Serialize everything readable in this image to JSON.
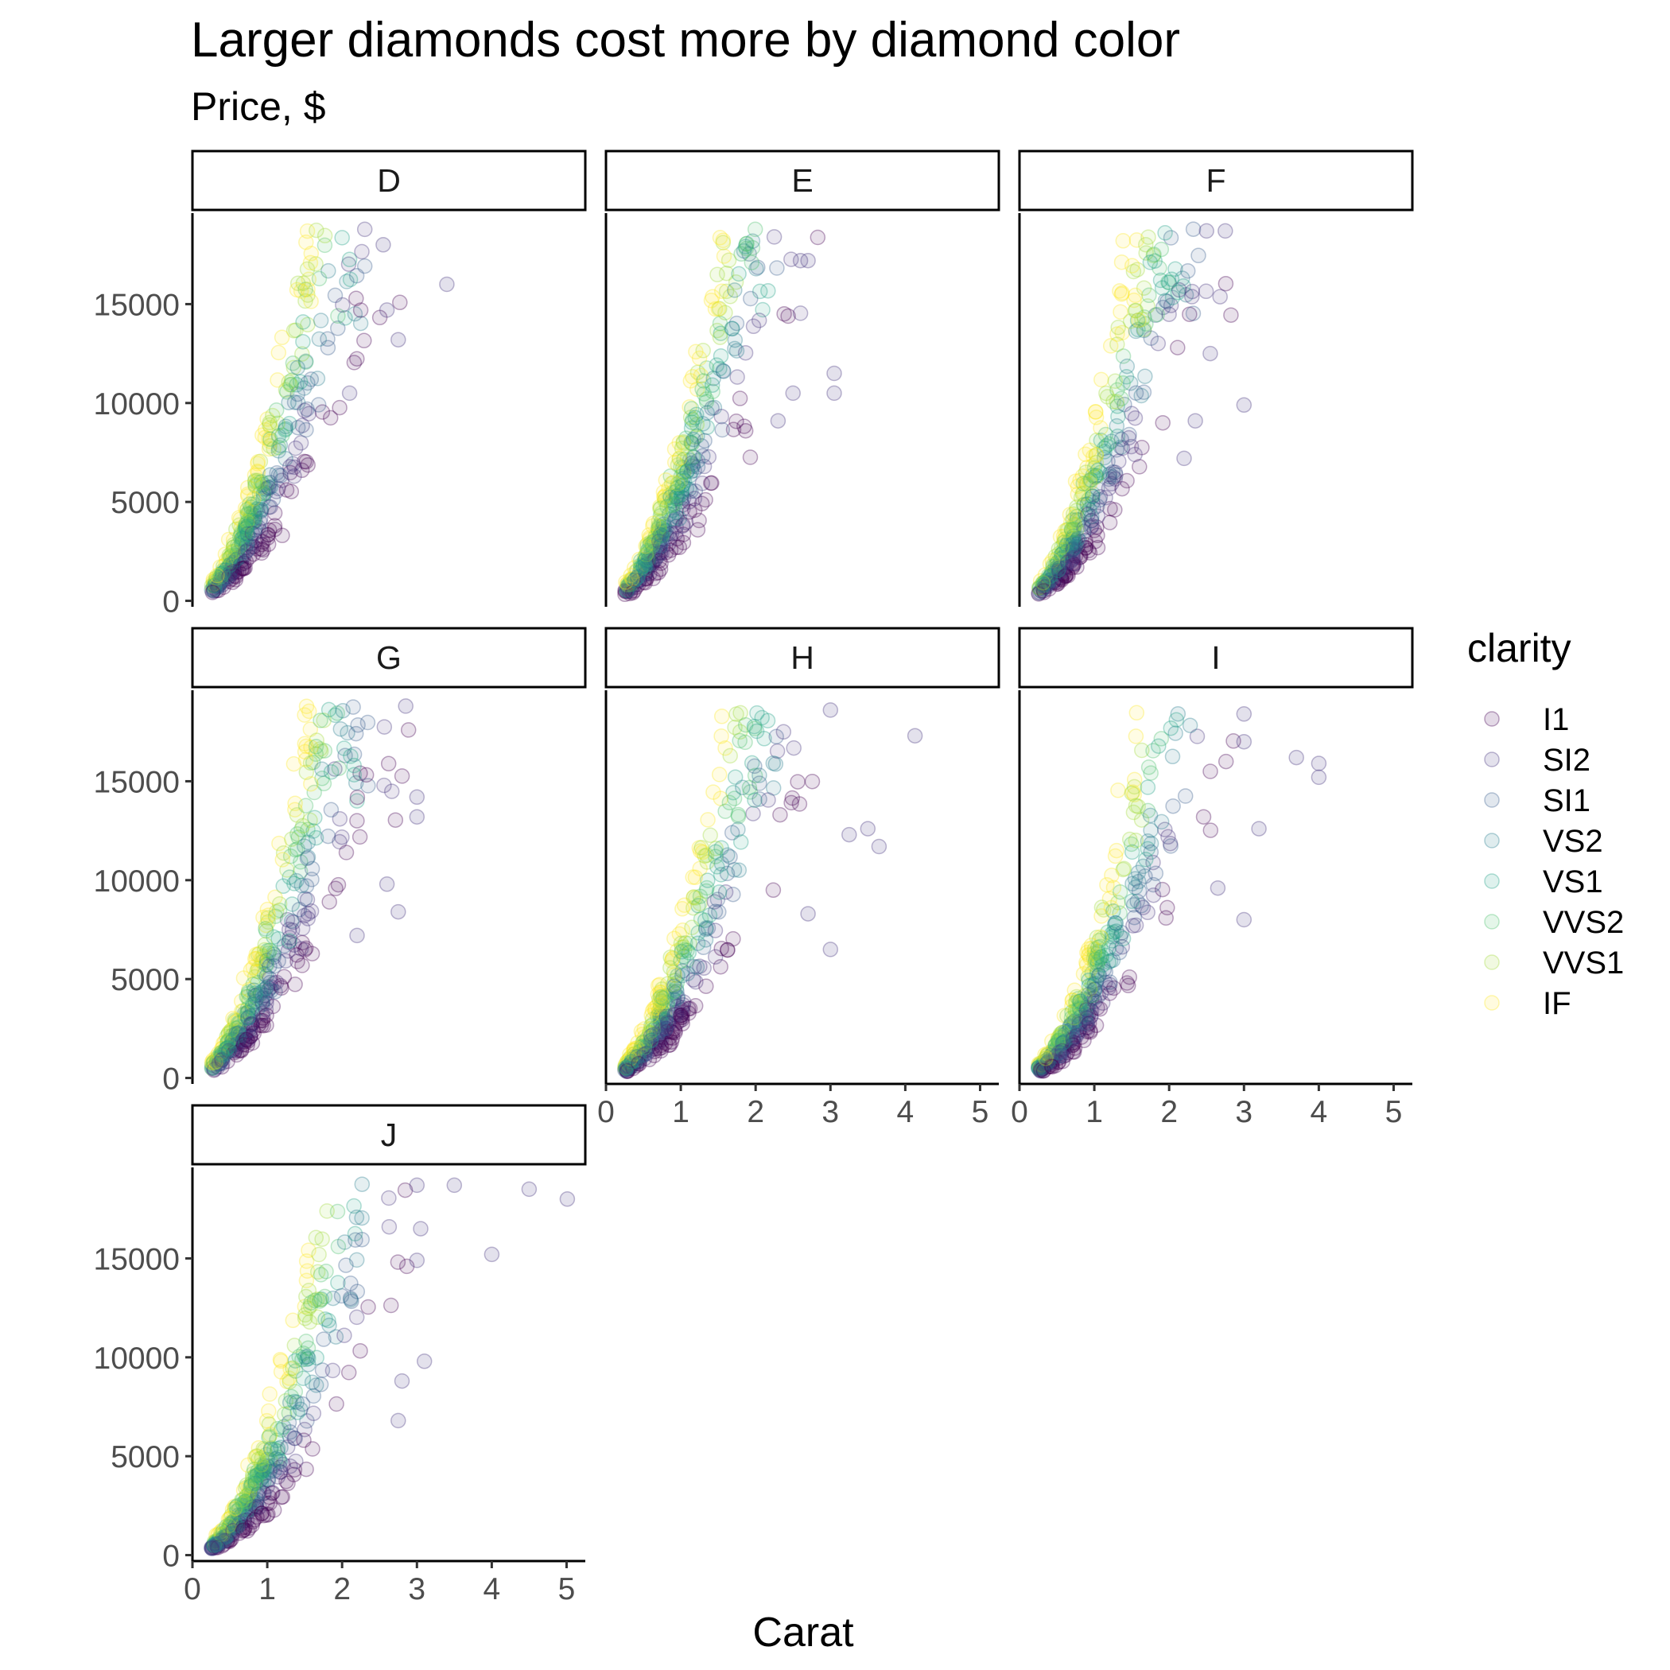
{
  "chart_data": {
    "type": "scatter",
    "title": "Larger diamonds cost more by diamond color",
    "subtitle": "Price, $",
    "xlabel": "Carat",
    "ylabel": "",
    "xlim": [
      0,
      5.25
    ],
    "ylim": [
      -300,
      19600
    ],
    "x_ticks": [
      0,
      1,
      2,
      3,
      4,
      5
    ],
    "y_ticks": [
      0,
      5000,
      10000,
      15000
    ],
    "facet_by": "color",
    "facets": [
      "D",
      "E",
      "F",
      "G",
      "H",
      "I",
      "J"
    ],
    "legend": {
      "title": "clarity",
      "position": "right",
      "entries": [
        "I1",
        "SI2",
        "SI1",
        "VS2",
        "VS1",
        "VVS2",
        "VVS1",
        "IF"
      ],
      "colors": [
        "#440154",
        "#46337e",
        "#365c8d",
        "#277f8e",
        "#1fa187",
        "#4ac16d",
        "#a0da39",
        "#fde725"
      ]
    },
    "point_alpha": 0.12,
    "grid": false,
    "panels": [
      {
        "facet": "D",
        "outliers": [
          [
            3.4,
            16000
          ],
          [
            2.6,
            14700
          ],
          [
            2.75,
            13200
          ],
          [
            2.55,
            18000
          ],
          [
            2.1,
            10500
          ]
        ]
      },
      {
        "facet": "E",
        "outliers": [
          [
            3.05,
            11500
          ],
          [
            3.05,
            10500
          ],
          [
            2.5,
            10500
          ],
          [
            2.3,
            9100
          ],
          [
            2.6,
            17200
          ],
          [
            2.7,
            17200
          ]
        ]
      },
      {
        "facet": "F",
        "outliers": [
          [
            3.0,
            9900
          ],
          [
            2.55,
            12500
          ],
          [
            2.5,
            18700
          ],
          [
            2.75,
            18700
          ],
          [
            2.35,
            9100
          ],
          [
            2.2,
            7200
          ]
        ]
      },
      {
        "facet": "G",
        "outliers": [
          [
            3.0,
            14200
          ],
          [
            3.0,
            13200
          ],
          [
            2.85,
            18800
          ],
          [
            2.75,
            8400
          ],
          [
            2.6,
            9800
          ],
          [
            2.2,
            7200
          ]
        ]
      },
      {
        "facet": "H",
        "outliers": [
          [
            4.13,
            17300
          ],
          [
            3.65,
            11700
          ],
          [
            3.5,
            12600
          ],
          [
            3.25,
            12300
          ],
          [
            3.0,
            6500
          ],
          [
            3.0,
            18600
          ],
          [
            2.7,
            8300
          ]
        ]
      },
      {
        "facet": "I",
        "outliers": [
          [
            4.0,
            15900
          ],
          [
            4.0,
            15200
          ],
          [
            3.7,
            16200
          ],
          [
            3.2,
            12600
          ],
          [
            3.0,
            18400
          ],
          [
            3.0,
            17000
          ],
          [
            3.0,
            8000
          ],
          [
            2.65,
            9600
          ]
        ]
      },
      {
        "facet": "J",
        "outliers": [
          [
            5.01,
            18000
          ],
          [
            4.5,
            18500
          ],
          [
            4.0,
            15200
          ],
          [
            3.5,
            18700
          ],
          [
            3.0,
            18700
          ],
          [
            3.05,
            16500
          ],
          [
            3.0,
            14900
          ],
          [
            3.1,
            9800
          ],
          [
            2.8,
            8800
          ],
          [
            2.75,
            6800
          ]
        ]
      }
    ]
  }
}
